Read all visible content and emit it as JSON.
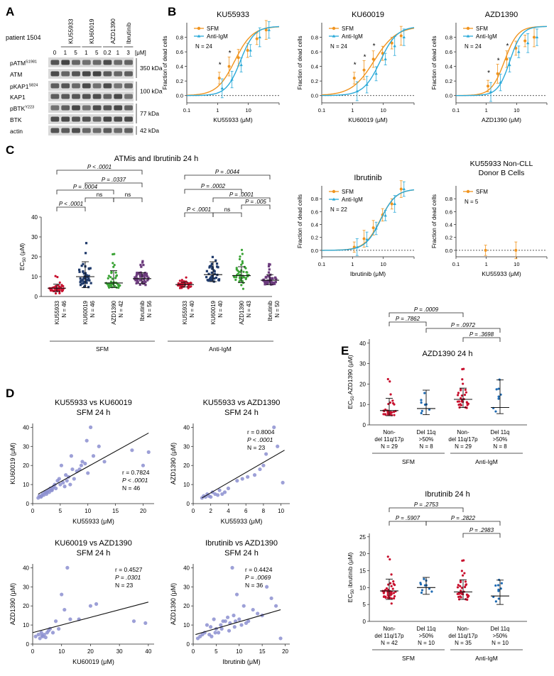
{
  "panel_letters": [
    "A",
    "B",
    "C",
    "D",
    "E"
  ],
  "western": {
    "patient": "patient 1504",
    "drug_groups": [
      {
        "name": "KU55933",
        "conc": [
          "1",
          "5"
        ]
      },
      {
        "name": "KU60019",
        "conc": [
          "1",
          "5"
        ]
      },
      {
        "name": "AZD1390",
        "conc": [
          "0.2",
          "1"
        ]
      },
      {
        "name": "Ibrutinib",
        "conc": [
          "3"
        ]
      }
    ],
    "control_conc": "0",
    "unit": "[μM]",
    "row_labels": [
      "pATM",
      "ATM",
      "pKAP1",
      "KAP1",
      "pBTK",
      "BTK",
      "actin"
    ],
    "row_sups": [
      "S1981",
      "",
      "S824",
      "",
      "Y223",
      "",
      ""
    ],
    "kda_labels": [
      "350 kDa",
      "100 kDa",
      "77 kDa",
      "42 kDa"
    ]
  },
  "chart_data": [
    {
      "id": "B1",
      "type": "line",
      "title": "KU55933",
      "xlabel": "KU55933 (μM)",
      "ylabel": "Fraction of dead cells",
      "xscale": "log",
      "xlim": [
        0.1,
        100
      ],
      "ylim": [
        -0.1,
        1.0
      ],
      "yticks": [
        "0.0",
        "0.2",
        "0.4",
        "0.6",
        "0.8"
      ],
      "xticks": [
        "0.1",
        "1",
        "10"
      ],
      "legend": [
        "SFM",
        "Anti-IgM"
      ],
      "n_label": "N = 24",
      "colors": [
        "#f0941f",
        "#2aa9d8"
      ],
      "series": [
        {
          "name": "SFM",
          "ec50": 3.6,
          "hill": 1.5,
          "x": [
            1.2,
            2.5,
            5,
            10,
            20,
            40
          ],
          "y": [
            0.24,
            0.4,
            0.52,
            0.62,
            0.78,
            0.9
          ]
        },
        {
          "name": "Anti-IgM",
          "ec50": 5.5,
          "hill": 1.9,
          "x": [
            1.2,
            2.5,
            5,
            10,
            20,
            40
          ],
          "y": [
            0.1,
            0.22,
            0.42,
            0.62,
            0.8,
            0.9
          ]
        }
      ],
      "stars": [
        1.2,
        2.5
      ]
    },
    {
      "id": "B2",
      "type": "line",
      "title": "KU60019",
      "xlabel": "KU60019 (μM)",
      "ylabel": "Fraction of dead cells",
      "xscale": "log",
      "xlim": [
        0.1,
        100
      ],
      "ylim": [
        -0.1,
        1.0
      ],
      "yticks": [
        "0.0",
        "0.2",
        "0.4",
        "0.6",
        "0.8"
      ],
      "xticks": [
        "0.1",
        "1",
        "10"
      ],
      "legend": [
        "SFM",
        "Anti-IgM"
      ],
      "n_label": "N = 24",
      "colors": [
        "#f0941f",
        "#2aa9d8"
      ],
      "series": [
        {
          "name": "SFM",
          "ec50": 5.0,
          "hill": 1.2,
          "x": [
            1.2,
            2.5,
            5,
            10,
            20,
            40
          ],
          "y": [
            0.24,
            0.35,
            0.5,
            0.58,
            0.72,
            0.82
          ]
        },
        {
          "name": "Anti-IgM",
          "ec50": 8.0,
          "hill": 1.6,
          "x": [
            1.2,
            2.5,
            5,
            10,
            20,
            40
          ],
          "y": [
            0.06,
            0.15,
            0.3,
            0.5,
            0.68,
            0.8
          ]
        }
      ],
      "stars": [
        1.2,
        2.5,
        5
      ]
    },
    {
      "id": "B3",
      "type": "line",
      "title": "AZD1390",
      "xlabel": "AZD1390 (μM)",
      "ylabel": "Fraction of dead cells",
      "xscale": "log",
      "xlim": [
        0.1,
        100
      ],
      "ylim": [
        -0.1,
        1.0
      ],
      "yticks": [
        "0.0",
        "0.2",
        "0.4",
        "0.6",
        "0.8"
      ],
      "xticks": [
        "0.1",
        "1",
        "10"
      ],
      "legend": [
        "SFM",
        "Anti-IgM"
      ],
      "n_label": "N = 24",
      "colors": [
        "#f0941f",
        "#2aa9d8"
      ],
      "series": [
        {
          "name": "SFM",
          "ec50": 4.0,
          "hill": 2.0,
          "x": [
            1.2,
            2.5,
            5,
            10,
            20,
            40
          ],
          "y": [
            0.13,
            0.3,
            0.5,
            0.65,
            0.75,
            0.8
          ]
        },
        {
          "name": "Anti-IgM",
          "ec50": 6.0,
          "hill": 2.2,
          "x": [
            1.2,
            2.5,
            5,
            10,
            20,
            40
          ],
          "y": [
            0.05,
            0.18,
            0.42,
            0.6,
            0.72,
            0.8
          ]
        }
      ],
      "stars": [
        1.2,
        2.5,
        5
      ]
    },
    {
      "id": "C_dot",
      "type": "scatter",
      "title": "ATMis and Ibrutinib 24 h",
      "ylabel": "EC50 (μM)",
      "ylim": [
        0,
        40
      ],
      "yticks": [
        "0",
        "10",
        "20",
        "30",
        "40"
      ],
      "groups": [
        {
          "label": "KU55933",
          "n": "N = 46",
          "color": "#c8102e",
          "median": 4.2,
          "q1": 2.5,
          "q3": 6.2
        },
        {
          "label": "KU60019",
          "n": "N = 46",
          "color": "#1f3a6b",
          "median": 10,
          "q1": 4.5,
          "q3": 17.5
        },
        {
          "label": "AZD1390",
          "n": "N = 42",
          "color": "#3aa335",
          "median": 6.8,
          "q1": 4.5,
          "q3": 13
        },
        {
          "label": "Ibrutinib",
          "n": "N = 56",
          "color": "#6b3b7c",
          "median": 9,
          "q1": 6.5,
          "q3": 12
        },
        {
          "label": "KU55933",
          "n": "N = 40",
          "color": "#c8102e",
          "median": 6,
          "q1": 4.8,
          "q3": 7.2
        },
        {
          "label": "KU60019",
          "n": "N = 40",
          "color": "#1f3a6b",
          "median": 11,
          "q1": 7.5,
          "q3": 17.5
        },
        {
          "label": "AZD1390",
          "n": "N = 43",
          "color": "#3aa335",
          "median": 10.5,
          "q1": 7,
          "q3": 15
        },
        {
          "label": "Ibrutinib",
          "n": "N = 50",
          "color": "#6b3b7c",
          "median": 8.2,
          "q1": 6,
          "q3": 11
        }
      ],
      "conditions": [
        "SFM",
        "Anti-IgM"
      ],
      "comparisons": [
        "P < .0001",
        "P = .0004",
        "P = .0337",
        "ns",
        "ns",
        "P < .0001",
        "P = .0044",
        "P = .0002",
        "P = .0001",
        "P < .0001",
        "ns",
        "P = .005"
      ]
    },
    {
      "id": "C_ibr",
      "type": "line",
      "title": "Ibrutinib",
      "xlabel": "Ibrutinib (μM)",
      "ylabel": "Fraction of dead cells",
      "xscale": "log",
      "xlim": [
        0.1,
        100
      ],
      "ylim": [
        -0.1,
        1.0
      ],
      "yticks": [
        "0.0",
        "0.2",
        "0.4",
        "0.6",
        "0.8"
      ],
      "xticks": [
        "0.1",
        "1",
        "10"
      ],
      "legend": [
        "SFM",
        "Anti-IgM"
      ],
      "n_label": "N = 22",
      "colors": [
        "#f0941f",
        "#2aa9d8"
      ],
      "series": [
        {
          "name": "SFM",
          "ec50": 8.0,
          "hill": 1.7,
          "x": [
            1.2,
            2.5,
            5,
            10,
            20,
            40
          ],
          "y": [
            0.05,
            0.18,
            0.35,
            0.55,
            0.72,
            0.95
          ]
        },
        {
          "name": "Anti-IgM",
          "ec50": 8.2,
          "hill": 1.75,
          "x": [
            1.2,
            2.5,
            5,
            10,
            20,
            40
          ],
          "y": [
            0.05,
            0.17,
            0.34,
            0.54,
            0.72,
            0.95
          ]
        }
      ],
      "stars": []
    },
    {
      "id": "C_non",
      "type": "line",
      "title": "KU55933 Non-CLL Donor B Cells",
      "xlabel": "KU55933 (μM)",
      "ylabel": "Fraction of dead cells",
      "xscale": "log",
      "xlim": [
        0.1,
        100
      ],
      "ylim": [
        -0.1,
        1.0
      ],
      "yticks": [
        "0.0",
        "0.2",
        "0.4",
        "0.6",
        "0.8"
      ],
      "xticks": [
        "0.1",
        "1",
        "10"
      ],
      "legend": [
        "SFM"
      ],
      "n_label": "N = 5",
      "colors": [
        "#f0941f"
      ],
      "series": [
        {
          "name": "SFM",
          "x": [
            1,
            10
          ],
          "y": [
            0.0,
            0.0
          ]
        }
      ],
      "stars": []
    },
    {
      "id": "D1",
      "type": "scatter",
      "title": "KU55933 vs KU60019",
      "subtitle": "SFM 24 h",
      "xlabel": "KU55933 (μM)",
      "ylabel": "KU60019 (μM)",
      "xlim": [
        0,
        22
      ],
      "ylim": [
        0,
        42
      ],
      "xticks": [
        "0",
        "5",
        "10",
        "15",
        "20"
      ],
      "yticks": [
        "0",
        "10",
        "20",
        "30",
        "40"
      ],
      "stats": [
        "r = 0.7824",
        "P < .0001",
        "N = 46"
      ],
      "fit": [
        [
          1,
          5
        ],
        [
          21,
          37
        ]
      ],
      "x": [
        1,
        1.2,
        1.5,
        1.8,
        2,
        2.2,
        2.5,
        2.8,
        3,
        3.2,
        3.5,
        3.8,
        4,
        4.2,
        4.5,
        5,
        5.2,
        5.5,
        6,
        6.2,
        6.5,
        7,
        7.5,
        8,
        8.5,
        9,
        9.5,
        10,
        10.5,
        11,
        12,
        13,
        18,
        20,
        21,
        1.6,
        2.4,
        3.4,
        4.8,
        5.8,
        7.2,
        8.8,
        9.8,
        6.8,
        3.6,
        2.6
      ],
      "y": [
        3,
        4,
        3.5,
        5,
        4.5,
        6,
        5,
        7,
        6,
        8,
        7,
        9,
        10,
        8,
        12,
        10,
        20,
        11,
        15,
        12,
        14,
        25,
        13,
        17,
        18,
        22,
        21,
        16,
        40,
        25,
        30,
        22,
        28,
        20,
        27,
        4,
        6,
        7,
        13,
        9,
        18,
        20,
        33,
        10,
        8,
        6
      ]
    },
    {
      "id": "D2",
      "type": "scatter",
      "title": "KU55933 vs AZD1390",
      "subtitle": "SFM 24 h",
      "xlabel": "KU55933 (μM)",
      "ylabel": "AZD1390 (μM)",
      "xlim": [
        0,
        11
      ],
      "ylim": [
        0,
        42
      ],
      "xticks": [
        "0",
        "2",
        "4",
        "6",
        "8",
        "10"
      ],
      "yticks": [
        "0",
        "10",
        "20",
        "30",
        "40"
      ],
      "stats": [
        "r = 0.8004",
        "P < .0001",
        "N = 23"
      ],
      "fit": [
        [
          1,
          3
        ],
        [
          10.4,
          28
        ]
      ],
      "x": [
        1,
        1.2,
        1.4,
        1.6,
        1.8,
        2,
        2.2,
        2.5,
        2.8,
        3,
        3.3,
        3.6,
        4,
        5,
        5.6,
        6.2,
        7,
        7.6,
        8,
        8.3,
        9.2,
        9.6,
        10.2
      ],
      "y": [
        3,
        4,
        3.5,
        5,
        4,
        3.5,
        6,
        5,
        4.5,
        7,
        5,
        6,
        8,
        12,
        13,
        14,
        15,
        18,
        20,
        26,
        40,
        30,
        11
      ]
    },
    {
      "id": "D3",
      "type": "scatter",
      "title": "KU60019 vs AZD1390",
      "subtitle": "SFM 24 h",
      "xlabel": "KU60019 (μM)",
      "ylabel": "AZD1390 (μM)",
      "xlim": [
        0,
        42
      ],
      "ylim": [
        0,
        42
      ],
      "xticks": [
        "0",
        "10",
        "20",
        "30",
        "40"
      ],
      "yticks": [
        "0",
        "10",
        "20",
        "30",
        "40"
      ],
      "stats": [
        "r = 0.4527",
        "P = .0301",
        "N = 23"
      ],
      "fit": [
        [
          0,
          6
        ],
        [
          40,
          22
        ]
      ],
      "x": [
        1,
        2,
        2.5,
        3,
        3.5,
        4,
        4.5,
        5,
        6,
        7,
        8,
        9,
        10,
        11,
        12,
        13,
        16,
        20,
        22,
        35,
        39,
        5.5,
        3.2
      ],
      "y": [
        4,
        5,
        3,
        6,
        4,
        5,
        3.5,
        6,
        8,
        6,
        12,
        8,
        26,
        18,
        40,
        13,
        13,
        20,
        21,
        12,
        11,
        7,
        4.5
      ]
    },
    {
      "id": "D4",
      "type": "scatter",
      "title": "Ibrutinib vs AZD1390",
      "subtitle": "SFM 24 h",
      "xlabel": "Ibrutinib (μM)",
      "ylabel": "AZD1390 (μM)",
      "xlim": [
        0,
        21
      ],
      "ylim": [
        0,
        42
      ],
      "xticks": [
        "0",
        "5",
        "10",
        "15",
        "20"
      ],
      "yticks": [
        "0",
        "10",
        "20",
        "30",
        "40"
      ],
      "stats": [
        "r = 0.4424",
        "P = .0069",
        "N = 36"
      ],
      "fit": [
        [
          0.5,
          5
        ],
        [
          19,
          18
        ]
      ],
      "x": [
        1,
        1.5,
        2,
        2.5,
        3,
        3.5,
        4,
        4.5,
        5,
        5.5,
        6,
        6.5,
        7,
        7.5,
        8,
        8.5,
        9,
        9.5,
        10,
        10.5,
        11,
        12,
        13,
        14,
        15,
        16,
        17,
        18,
        19,
        6.2,
        7.8,
        4.8,
        8.8,
        9.2,
        3.8,
        11.5
      ],
      "y": [
        3,
        4,
        5,
        6,
        10,
        5,
        4,
        13,
        8,
        6,
        10,
        12,
        12,
        14,
        11,
        40,
        9,
        26,
        13,
        10,
        20,
        12,
        18,
        16,
        15,
        30,
        24,
        20,
        3,
        8,
        7,
        6,
        15,
        12,
        9,
        11
      ]
    },
    {
      "id": "E1",
      "type": "scatter",
      "title": "AZD1390 24 h",
      "ylabel": "EC50 AZD1390 (μM)",
      "ylim": [
        0,
        42
      ],
      "yticks": [
        "0",
        "10",
        "20",
        "30",
        "40"
      ],
      "groups": [
        {
          "label1": "Non-",
          "label2": "del 11q/17p",
          "n": "N = 29",
          "color": "#c8102e",
          "median": 7,
          "q1": 4.5,
          "q3": 13
        },
        {
          "label1": "Del 11q",
          "label2": ">50%",
          "n": "N = 8",
          "color": "#1f6bb3",
          "median": 8,
          "q1": 5,
          "q3": 17
        },
        {
          "label1": "Non-",
          "label2": "del 11q/17p",
          "n": "N = 29",
          "color": "#c8102e",
          "median": 12.5,
          "q1": 8.5,
          "q3": 18
        },
        {
          "label1": "Del 11q",
          "label2": ">50%",
          "n": "N = 8",
          "color": "#1f6bb3",
          "median": 8.5,
          "q1": 5.5,
          "q3": 22
        }
      ],
      "conditions": [
        "SFM",
        "Anti-IgM"
      ],
      "comparisons": [
        "P = .0009",
        "P = .7862",
        "P = .0972",
        "P = .3698"
      ]
    },
    {
      "id": "E2",
      "type": "scatter",
      "title": "Ibrutinib 24 h",
      "ylabel": "EC50 ibrutinib (μM)",
      "ylim": [
        0,
        26
      ],
      "yticks": [
        "0",
        "5",
        "10",
        "15",
        "20",
        "25"
      ],
      "groups": [
        {
          "label1": "Non-",
          "label2": "del 11q/17p",
          "n": "N = 42",
          "color": "#c8102e",
          "median": 9,
          "q1": 6.5,
          "q3": 12.5
        },
        {
          "label1": "Del 11q",
          "label2": ">50%",
          "n": "N = 10",
          "color": "#1f6bb3",
          "median": 10,
          "q1": 8,
          "q3": 13
        },
        {
          "label1": "Non-",
          "label2": "del 11q/17p",
          "n": "N = 35",
          "color": "#c8102e",
          "median": 8.7,
          "q1": 6.5,
          "q3": 12.3
        },
        {
          "label1": "Del 11q",
          "label2": ">50%",
          "n": "N = 10",
          "color": "#1f6bb3",
          "median": 7.5,
          "q1": 5,
          "q3": 12.2
        }
      ],
      "conditions": [
        "SFM",
        "Anti-IgM"
      ],
      "comparisons": [
        "P = .2753",
        "P = .5907",
        "P = .2822",
        "P = .2983"
      ]
    }
  ]
}
